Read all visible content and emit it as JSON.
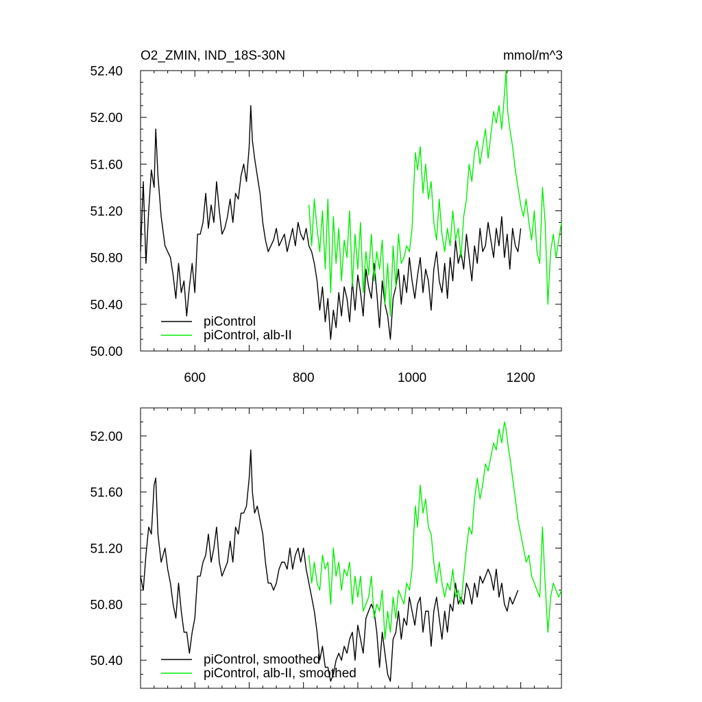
{
  "colors": {
    "piControl": "#000000",
    "alb_II": "#00ee00",
    "background": "#ffffff"
  },
  "chart_data": [
    {
      "type": "line",
      "title": "O2_ZMIN, IND_18S-30N",
      "units": "mmol/m^3",
      "xlim": [
        500,
        1275
      ],
      "ylim": [
        50.0,
        52.4
      ],
      "x_ticks": [
        "600",
        "800",
        "1000",
        "1200"
      ],
      "y_ticks": [
        "50.00",
        "50.40",
        "50.80",
        "51.20",
        "51.60",
        "52.00",
        "52.40"
      ],
      "grid": false,
      "legend_position": "bottom-left",
      "series": [
        {
          "name": "piControl",
          "color": "#000000",
          "x": [
            500,
            505,
            510,
            515,
            520,
            525,
            528,
            532,
            538,
            545,
            550,
            555,
            560,
            565,
            570,
            575,
            580,
            585,
            590,
            595,
            600,
            605,
            610,
            615,
            620,
            625,
            630,
            635,
            640,
            645,
            650,
            655,
            660,
            665,
            670,
            675,
            680,
            685,
            690,
            695,
            700,
            703,
            706,
            710,
            715,
            720,
            725,
            730,
            735,
            740,
            745,
            750,
            755,
            760,
            765,
            770,
            775,
            780,
            785,
            790,
            795,
            800,
            805,
            810,
            815,
            820,
            825,
            830,
            835,
            840,
            845,
            850,
            855,
            860,
            865,
            870,
            875,
            880,
            885,
            890,
            895,
            900,
            905,
            910,
            915,
            920,
            925,
            930,
            935,
            940,
            945,
            950,
            955,
            960,
            965,
            970,
            975,
            980,
            985,
            990,
            995,
            1000,
            1005,
            1010,
            1015,
            1020,
            1025,
            1030,
            1035,
            1040,
            1045,
            1050,
            1055,
            1060,
            1065,
            1070,
            1075,
            1080,
            1085,
            1090,
            1095,
            1100,
            1105,
            1110,
            1115,
            1120,
            1125,
            1130,
            1135,
            1140,
            1145,
            1150,
            1155,
            1160,
            1165,
            1170,
            1175,
            1180,
            1185,
            1190,
            1195,
            1200
          ],
          "y": [
            50.85,
            51.45,
            50.75,
            51.2,
            51.55,
            51.4,
            51.9,
            51.5,
            51.15,
            50.9,
            50.85,
            50.8,
            50.65,
            50.45,
            50.75,
            50.5,
            50.6,
            50.3,
            50.55,
            50.75,
            50.5,
            51.0,
            51.0,
            51.1,
            51.35,
            51.05,
            51.25,
            51.1,
            51.45,
            51.2,
            51.0,
            51.05,
            51.15,
            51.3,
            51.1,
            51.35,
            51.3,
            51.5,
            51.6,
            51.45,
            51.75,
            52.1,
            51.8,
            51.65,
            51.5,
            51.35,
            51.1,
            50.95,
            50.85,
            50.9,
            50.95,
            51.05,
            50.9,
            50.95,
            51.0,
            50.85,
            50.95,
            51.05,
            50.9,
            51.1,
            51.0,
            50.95,
            51.05,
            50.9,
            50.85,
            50.75,
            50.6,
            50.35,
            50.55,
            50.25,
            50.45,
            50.1,
            50.35,
            50.2,
            50.5,
            50.3,
            50.55,
            50.45,
            50.25,
            50.6,
            50.35,
            50.65,
            50.5,
            50.3,
            50.7,
            50.55,
            50.45,
            50.75,
            50.5,
            50.2,
            50.6,
            50.4,
            50.3,
            50.1,
            50.45,
            50.55,
            50.7,
            50.4,
            50.65,
            50.5,
            50.8,
            50.6,
            50.45,
            50.65,
            50.8,
            50.5,
            50.7,
            50.6,
            50.35,
            50.7,
            50.85,
            50.6,
            50.5,
            50.75,
            50.45,
            50.8,
            50.6,
            50.95,
            50.75,
            50.85,
            50.7,
            51.0,
            50.8,
            50.6,
            50.9,
            50.75,
            51.05,
            50.85,
            50.9,
            51.1,
            50.95,
            50.8,
            51.05,
            50.9,
            51.15,
            50.8,
            51.0,
            50.7,
            51.05,
            50.9,
            50.85,
            51.05
          ],
          "line_width": 1.4
        },
        {
          "name": "piControl, alb-II",
          "color": "#00ee00",
          "x": [
            810,
            815,
            820,
            825,
            830,
            835,
            840,
            845,
            850,
            855,
            860,
            865,
            870,
            875,
            880,
            885,
            890,
            895,
            900,
            905,
            910,
            915,
            920,
            925,
            930,
            935,
            940,
            945,
            950,
            955,
            960,
            965,
            970,
            975,
            980,
            985,
            990,
            995,
            1000,
            1003,
            1006,
            1010,
            1015,
            1020,
            1025,
            1030,
            1035,
            1040,
            1045,
            1050,
            1055,
            1060,
            1065,
            1070,
            1075,
            1080,
            1085,
            1090,
            1095,
            1100,
            1105,
            1110,
            1115,
            1120,
            1125,
            1130,
            1135,
            1140,
            1145,
            1150,
            1155,
            1160,
            1165,
            1170,
            1173,
            1176,
            1180,
            1185,
            1190,
            1195,
            1200,
            1205,
            1210,
            1215,
            1220,
            1225,
            1230,
            1235,
            1240,
            1245,
            1250,
            1255,
            1260,
            1265,
            1270,
            1275
          ],
          "y": [
            51.25,
            50.9,
            51.3,
            51.05,
            50.85,
            51.2,
            50.7,
            51.3,
            50.5,
            51.15,
            50.75,
            51.05,
            50.6,
            50.95,
            50.8,
            51.2,
            50.55,
            51.0,
            50.7,
            51.1,
            50.5,
            50.85,
            50.65,
            51.0,
            50.6,
            50.85,
            50.7,
            50.95,
            50.4,
            50.75,
            50.3,
            50.9,
            50.55,
            51.0,
            50.75,
            50.8,
            50.9,
            50.85,
            51.05,
            51.4,
            51.7,
            51.55,
            51.75,
            51.35,
            51.6,
            51.3,
            51.45,
            51.1,
            50.95,
            51.3,
            51.0,
            50.85,
            51.05,
            50.9,
            51.2,
            50.95,
            51.05,
            50.8,
            51.15,
            51.3,
            51.6,
            51.45,
            51.7,
            51.8,
            51.6,
            51.75,
            51.9,
            51.65,
            51.85,
            52.05,
            51.95,
            52.1,
            51.9,
            52.2,
            52.4,
            52.05,
            51.9,
            51.75,
            51.55,
            51.4,
            51.25,
            51.15,
            51.3,
            51.1,
            50.95,
            51.2,
            50.85,
            50.75,
            51.4,
            51.1,
            50.4,
            50.85,
            51.0,
            50.8,
            50.95,
            51.1
          ],
          "line_width": 1.4
        }
      ]
    },
    {
      "type": "line",
      "title": "",
      "units": "",
      "xlim": [
        500,
        1275
      ],
      "ylim": [
        50.2,
        52.2
      ],
      "x_ticks": [],
      "y_ticks": [
        "50.40",
        "50.80",
        "51.20",
        "51.60",
        "52.00"
      ],
      "grid": false,
      "legend_position": "bottom-left",
      "series": [
        {
          "name": "piControl, smoothed",
          "color": "#000000",
          "x": [
            500,
            505,
            510,
            515,
            520,
            525,
            528,
            532,
            538,
            545,
            550,
            555,
            560,
            565,
            570,
            575,
            580,
            585,
            590,
            595,
            600,
            605,
            610,
            615,
            620,
            625,
            630,
            635,
            640,
            645,
            650,
            655,
            660,
            665,
            670,
            675,
            680,
            685,
            690,
            695,
            700,
            703,
            706,
            710,
            715,
            720,
            725,
            730,
            735,
            740,
            745,
            750,
            755,
            760,
            765,
            770,
            775,
            780,
            785,
            790,
            795,
            800,
            805,
            810,
            815,
            820,
            825,
            830,
            835,
            840,
            845,
            850,
            855,
            860,
            865,
            870,
            875,
            880,
            885,
            890,
            895,
            900,
            905,
            910,
            915,
            920,
            925,
            930,
            935,
            940,
            945,
            950,
            955,
            960,
            965,
            970,
            975,
            980,
            985,
            990,
            995,
            1000,
            1005,
            1010,
            1015,
            1020,
            1025,
            1030,
            1035,
            1040,
            1045,
            1050,
            1055,
            1060,
            1065,
            1070,
            1075,
            1080,
            1085,
            1090,
            1095,
            1100,
            1105,
            1110,
            1115,
            1120,
            1125,
            1130,
            1135,
            1140,
            1145,
            1150,
            1155,
            1160,
            1165,
            1170,
            1175,
            1180,
            1185,
            1190,
            1195
          ],
          "y": [
            51.0,
            50.9,
            51.15,
            51.35,
            51.3,
            51.65,
            51.7,
            51.3,
            51.1,
            51.2,
            51.05,
            50.95,
            50.8,
            50.7,
            50.95,
            50.75,
            50.6,
            50.6,
            50.45,
            50.6,
            50.7,
            51.0,
            51.0,
            51.1,
            51.15,
            51.3,
            51.1,
            51.2,
            51.35,
            51.1,
            51.0,
            51.05,
            51.1,
            51.25,
            51.1,
            51.35,
            51.3,
            51.45,
            51.45,
            51.5,
            51.7,
            51.9,
            51.6,
            51.45,
            51.5,
            51.4,
            51.3,
            51.1,
            50.95,
            50.95,
            50.9,
            50.95,
            51.05,
            51.1,
            51.1,
            51.05,
            51.2,
            51.05,
            51.15,
            51.2,
            51.1,
            51.2,
            51.05,
            50.95,
            50.85,
            50.75,
            50.6,
            50.4,
            50.5,
            50.35,
            50.35,
            50.25,
            50.3,
            50.4,
            50.45,
            50.4,
            50.5,
            50.45,
            50.55,
            50.6,
            50.4,
            50.65,
            50.55,
            50.45,
            50.7,
            50.75,
            50.8,
            50.75,
            50.6,
            50.35,
            50.6,
            50.45,
            50.3,
            50.25,
            50.55,
            50.6,
            50.75,
            50.55,
            50.7,
            50.65,
            50.85,
            50.75,
            50.65,
            50.8,
            50.85,
            50.6,
            50.75,
            50.75,
            50.5,
            50.75,
            50.85,
            50.7,
            50.55,
            50.75,
            50.6,
            50.8,
            50.75,
            50.95,
            50.8,
            50.85,
            50.8,
            50.95,
            50.9,
            50.8,
            50.95,
            50.85,
            51.0,
            50.95,
            51.0,
            51.05,
            51.0,
            50.9,
            51.05,
            50.85,
            50.95,
            50.8,
            50.75,
            50.85,
            50.8,
            50.85,
            50.9
          ],
          "line_width": 1.4
        },
        {
          "name": "piControl, alb-II, smoothed",
          "color": "#00ee00",
          "x": [
            810,
            815,
            820,
            825,
            830,
            835,
            840,
            845,
            850,
            855,
            860,
            865,
            870,
            875,
            880,
            885,
            890,
            895,
            900,
            905,
            910,
            915,
            920,
            925,
            930,
            935,
            940,
            945,
            950,
            955,
            960,
            965,
            970,
            975,
            980,
            985,
            990,
            995,
            1000,
            1003,
            1006,
            1010,
            1015,
            1020,
            1025,
            1030,
            1035,
            1040,
            1045,
            1050,
            1055,
            1060,
            1065,
            1070,
            1075,
            1080,
            1085,
            1090,
            1095,
            1100,
            1105,
            1110,
            1115,
            1120,
            1125,
            1130,
            1135,
            1140,
            1145,
            1150,
            1155,
            1160,
            1165,
            1170,
            1173,
            1176,
            1180,
            1185,
            1190,
            1195,
            1200,
            1205,
            1210,
            1215,
            1220,
            1225,
            1230,
            1235,
            1240,
            1245,
            1250,
            1255,
            1260,
            1265,
            1270,
            1275
          ],
          "y": [
            51.15,
            50.95,
            51.1,
            50.95,
            50.9,
            51.15,
            51.05,
            51.1,
            50.8,
            51.2,
            51.0,
            51.1,
            50.9,
            51.05,
            51.0,
            51.1,
            50.8,
            51.0,
            50.85,
            51.0,
            50.75,
            50.8,
            50.85,
            51.0,
            50.7,
            50.8,
            50.75,
            50.9,
            50.55,
            50.75,
            50.6,
            50.85,
            50.7,
            50.9,
            50.85,
            50.8,
            50.95,
            50.9,
            51.05,
            51.3,
            51.5,
            51.35,
            51.65,
            51.45,
            51.55,
            51.35,
            51.3,
            51.1,
            50.95,
            51.1,
            50.95,
            50.85,
            50.95,
            50.9,
            51.05,
            50.85,
            50.9,
            50.8,
            51.0,
            51.2,
            51.35,
            51.3,
            51.55,
            51.7,
            51.55,
            51.65,
            51.8,
            51.75,
            51.85,
            51.95,
            51.9,
            52.05,
            51.95,
            52.1,
            52.05,
            51.95,
            51.85,
            51.7,
            51.55,
            51.4,
            51.3,
            51.2,
            51.1,
            51.15,
            51.0,
            50.95,
            50.9,
            50.85,
            51.35,
            50.95,
            50.6,
            50.85,
            50.95,
            50.9,
            50.85,
            50.9
          ],
          "line_width": 1.4
        }
      ]
    }
  ]
}
